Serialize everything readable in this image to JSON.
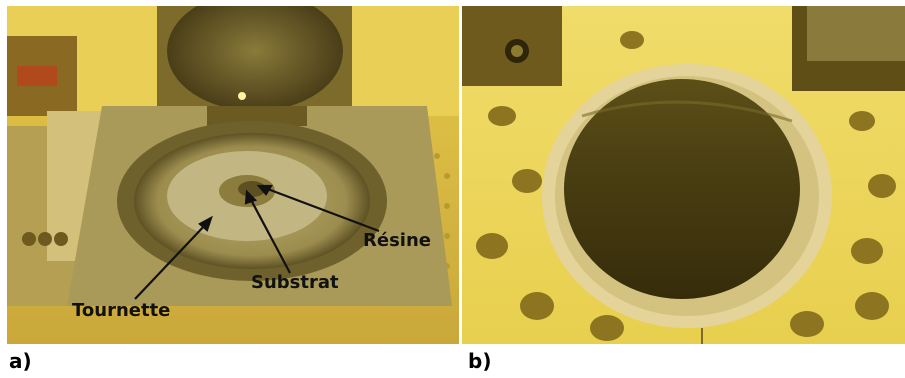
{
  "panels": {
    "a": {
      "letter": "a)",
      "labels": {
        "resine": "Résine",
        "substrat": "Substrat",
        "tournette": "Tournette"
      }
    },
    "b": {
      "letter": "b)"
    }
  }
}
